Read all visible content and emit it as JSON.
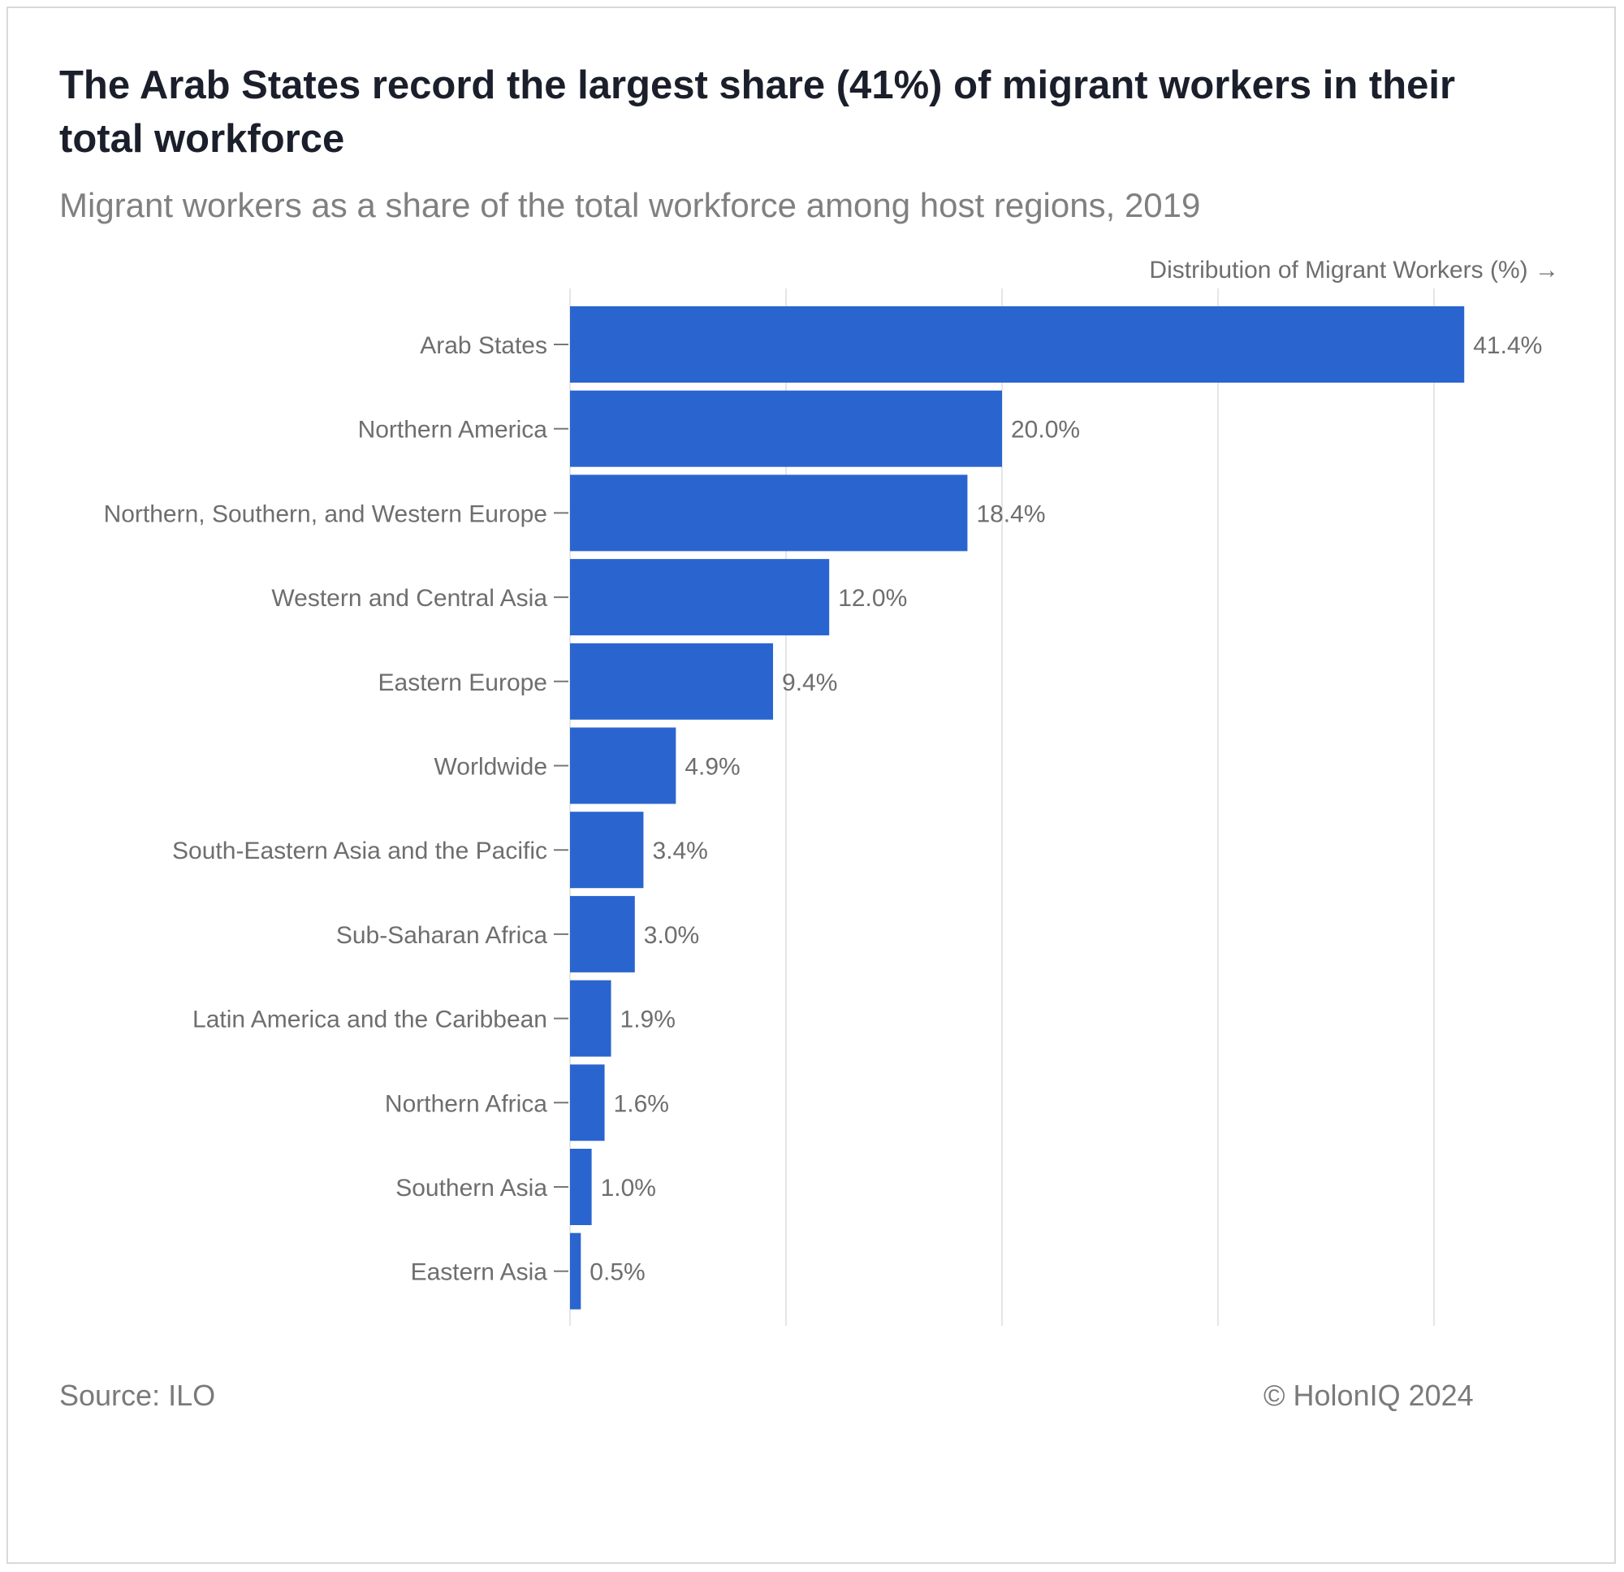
{
  "header": {
    "title": "The Arab States record the largest share (41%) of migrant workers in their total workforce",
    "subtitle": "Migrant workers as a share of the total workforce among host regions, 2019"
  },
  "footer": {
    "source": "Source: ILO",
    "credit": "© HolonIQ 2024"
  },
  "colors": {
    "bar": "#2a65cf",
    "grid": "#e6e6e6",
    "label": "#6e6e6e"
  },
  "chart_data": {
    "type": "bar",
    "orientation": "horizontal",
    "xlabel": "Distribution of Migrant Workers (%) →",
    "categories": [
      "Arab States",
      "Northern America",
      "Northern, Southern, and Western Europe",
      "Western and Central Asia",
      "Eastern Europe",
      "Worldwide",
      "South-Eastern Asia and the Pacific",
      "Sub-Saharan Africa",
      "Latin America and the Caribbean",
      "Northern Africa",
      "Southern Asia",
      "Eastern Asia"
    ],
    "values": [
      41.4,
      20.0,
      18.4,
      12.0,
      9.4,
      4.9,
      3.4,
      3.0,
      1.9,
      1.6,
      1.0,
      0.5
    ],
    "data_labels": [
      "41.4%",
      "20.0%",
      "18.4%",
      "12.0%",
      "9.4%",
      "4.9%",
      "3.4%",
      "3.0%",
      "1.9%",
      "1.6%",
      "1.0%",
      "0.5%"
    ],
    "xlim": [
      0,
      50
    ],
    "grid_step": 10,
    "grid": true,
    "legend": "none"
  }
}
